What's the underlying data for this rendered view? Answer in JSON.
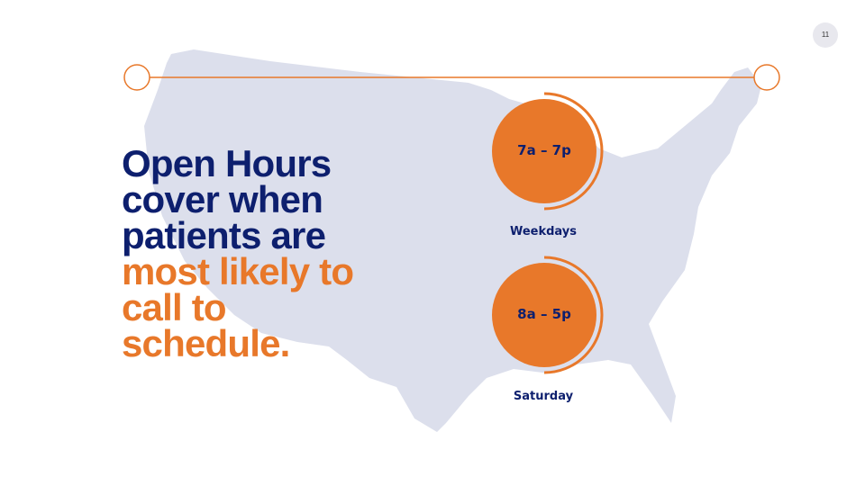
{
  "page_number": "11",
  "headline": {
    "lines": [
      "Open Hours",
      "cover when",
      "patients are"
    ],
    "highlight_lines": [
      "most likely to",
      "call to",
      "schedule."
    ]
  },
  "hours": [
    {
      "time": "7a – 7p",
      "label": "Weekdays"
    },
    {
      "time": "8a – 5p",
      "label": "Saturday"
    }
  ]
}
